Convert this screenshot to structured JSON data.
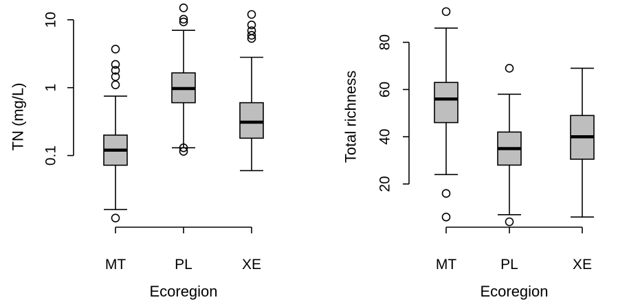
{
  "chart_data": [
    {
      "type": "boxplot",
      "xlabel": "Ecoregion",
      "ylabel": "TN (mg/L)",
      "yscale": "log",
      "ylim": [
        0.009,
        15.5
      ],
      "yticks": [
        0.1,
        1,
        10
      ],
      "ytick_labels": [
        "0.1",
        "1",
        "10"
      ],
      "grid": false,
      "categories": [
        "MT",
        "PL",
        "XE"
      ],
      "boxes": [
        {
          "whisker_low": 0.016,
          "q1": 0.072,
          "median": 0.12,
          "q3": 0.2,
          "whisker_high": 0.75,
          "outliers": [
            3.7,
            2.2,
            1.8,
            1.45,
            1.1,
            0.012
          ]
        },
        {
          "whisker_low": 0.13,
          "q1": 0.6,
          "median": 0.97,
          "q3": 1.65,
          "whisker_high": 7.0,
          "outliers": [
            15.0,
            10.2,
            9.3,
            0.13,
            0.115
          ]
        },
        {
          "whisker_low": 0.06,
          "q1": 0.18,
          "median": 0.31,
          "q3": 0.6,
          "whisker_high": 2.8,
          "outliers": [
            12.0,
            8.4,
            6.9,
            5.9,
            5.3
          ]
        }
      ]
    },
    {
      "type": "boxplot",
      "xlabel": "Ecoregion",
      "ylabel": "Total richness",
      "yscale": "linear",
      "ylim": [
        2,
        95
      ],
      "yticks": [
        20,
        40,
        60,
        80
      ],
      "ytick_labels": [
        "20",
        "40",
        "60",
        "80"
      ],
      "grid": false,
      "categories": [
        "MT",
        "PL",
        "XE"
      ],
      "boxes": [
        {
          "whisker_low": 24,
          "q1": 46,
          "median": 56,
          "q3": 63,
          "whisker_high": 86,
          "outliers": [
            93,
            16,
            6
          ]
        },
        {
          "whisker_low": 7,
          "q1": 28,
          "median": 35,
          "q3": 42,
          "whisker_high": 58,
          "outliers": [
            69,
            4
          ]
        },
        {
          "whisker_low": 6,
          "q1": 30.5,
          "median": 40,
          "q3": 49,
          "whisker_high": 69,
          "outliers": []
        }
      ]
    }
  ]
}
